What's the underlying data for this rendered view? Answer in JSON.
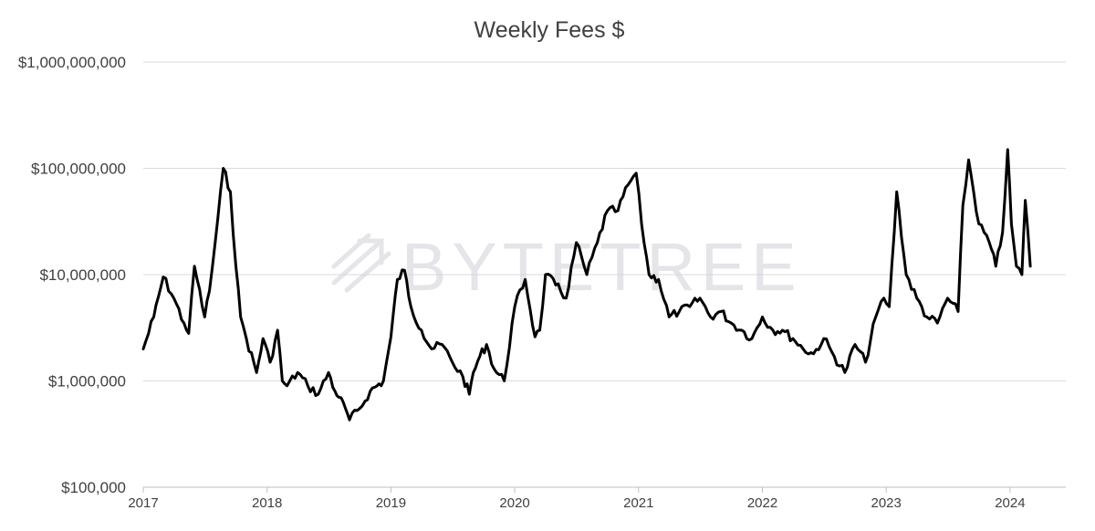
{
  "chart_data": {
    "type": "line",
    "title": "Weekly Fees $",
    "xlabel": "",
    "ylabel": "",
    "y_scale": "log",
    "ylim": [
      100000,
      1000000000
    ],
    "y_ticks": [
      100000,
      1000000,
      10000000,
      100000000,
      1000000000
    ],
    "y_tick_labels": [
      "$100,000",
      "$1,000,000",
      "$10,000,000",
      "$100,000,000",
      "$1,000,000,000"
    ],
    "xlim": [
      "2017-01-01",
      "2024-12-01"
    ],
    "x_tick_labels": [
      "2017",
      "2018",
      "2019",
      "2020",
      "2021",
      "2022",
      "2023",
      "2024"
    ],
    "grid": true,
    "legend": "none",
    "line_color": "#000000",
    "watermark": "BYTETREE",
    "series": [
      {
        "x": [
          "2017-01-01",
          "2017-02-01",
          "2017-03-01",
          "2017-04-01",
          "2017-05-01",
          "2017-05-15",
          "2017-06-01",
          "2017-07-01",
          "2017-07-15",
          "2017-08-01",
          "2017-08-25",
          "2017-09-15",
          "2017-10-01",
          "2017-10-15",
          "2017-11-01",
          "2017-12-01",
          "2017-12-20",
          "2018-01-10",
          "2018-02-01",
          "2018-02-15",
          "2018-03-01",
          "2018-04-01",
          "2018-05-01",
          "2018-06-01",
          "2018-07-01",
          "2018-07-20",
          "2018-08-01",
          "2018-08-20",
          "2018-09-01",
          "2018-10-01",
          "2018-11-01",
          "2018-12-10",
          "2019-01-01",
          "2019-01-20",
          "2019-02-10",
          "2019-03-01",
          "2019-04-01",
          "2019-05-01",
          "2019-06-01",
          "2019-07-01",
          "2019-08-01",
          "2019-08-20",
          "2019-09-01",
          "2019-09-20",
          "2019-10-10",
          "2019-11-01",
          "2019-12-01",
          "2020-01-01",
          "2020-02-01",
          "2020-03-01",
          "2020-03-15",
          "2020-04-01",
          "2020-05-01",
          "2020-06-01",
          "2020-07-01",
          "2020-08-01",
          "2020-09-01",
          "2020-10-01",
          "2020-11-01",
          "2020-12-01",
          "2020-12-25",
          "2021-01-10",
          "2021-02-01",
          "2021-03-01",
          "2021-04-01",
          "2021-05-01",
          "2021-06-01",
          "2021-07-01",
          "2021-08-01",
          "2021-09-01",
          "2021-10-01",
          "2021-11-01",
          "2021-12-01",
          "2022-01-01",
          "2022-02-01",
          "2022-03-01",
          "2022-04-01",
          "2022-05-01",
          "2022-06-01",
          "2022-07-01",
          "2022-08-01",
          "2022-09-01",
          "2022-10-01",
          "2022-11-01",
          "2022-12-01",
          "2022-12-25",
          "2023-01-10",
          "2023-02-01",
          "2023-03-01",
          "2023-04-01",
          "2023-05-01",
          "2023-06-01",
          "2023-07-01",
          "2023-08-01",
          "2023-08-15",
          "2023-09-01",
          "2023-10-01",
          "2023-11-01",
          "2023-11-20",
          "2023-12-10",
          "2023-12-25",
          "2024-01-05",
          "2024-01-20",
          "2024-02-05",
          "2024-02-15",
          "2024-03-01"
        ],
        "values": [
          2000000,
          4000000,
          9500000,
          6000000,
          3500000,
          2800000,
          12000000,
          4000000,
          7000000,
          20000000,
          100000000,
          60000000,
          12000000,
          4000000,
          2500000,
          1200000,
          2500000,
          1500000,
          3000000,
          1000000,
          900000,
          1200000,
          900000,
          750000,
          1200000,
          800000,
          700000,
          550000,
          430000,
          550000,
          800000,
          1000000,
          2600000,
          9000000,
          11000000,
          5000000,
          3000000,
          2000000,
          2200000,
          1500000,
          1100000,
          750000,
          1200000,
          1700000,
          2200000,
          1300000,
          1000000,
          5000000,
          9000000,
          2600000,
          3000000,
          10000000,
          8000000,
          6000000,
          20000000,
          10000000,
          20000000,
          40000000,
          40000000,
          70000000,
          90000000,
          30000000,
          10000000,
          9000000,
          4000000,
          4500000,
          5000000,
          6000000,
          4000000,
          4500000,
          3500000,
          3000000,
          2500000,
          4000000,
          3000000,
          3000000,
          2500000,
          2000000,
          1800000,
          2500000,
          1700000,
          1200000,
          2200000,
          1500000,
          4000000,
          6000000,
          5000000,
          60000000,
          10000000,
          6000000,
          4000000,
          3500000,
          6000000,
          4500000,
          45000000,
          120000000,
          30000000,
          20000000,
          12000000,
          25000000,
          150000000,
          30000000,
          12000000,
          10000000,
          50000000,
          12000000
        ]
      }
    ]
  }
}
